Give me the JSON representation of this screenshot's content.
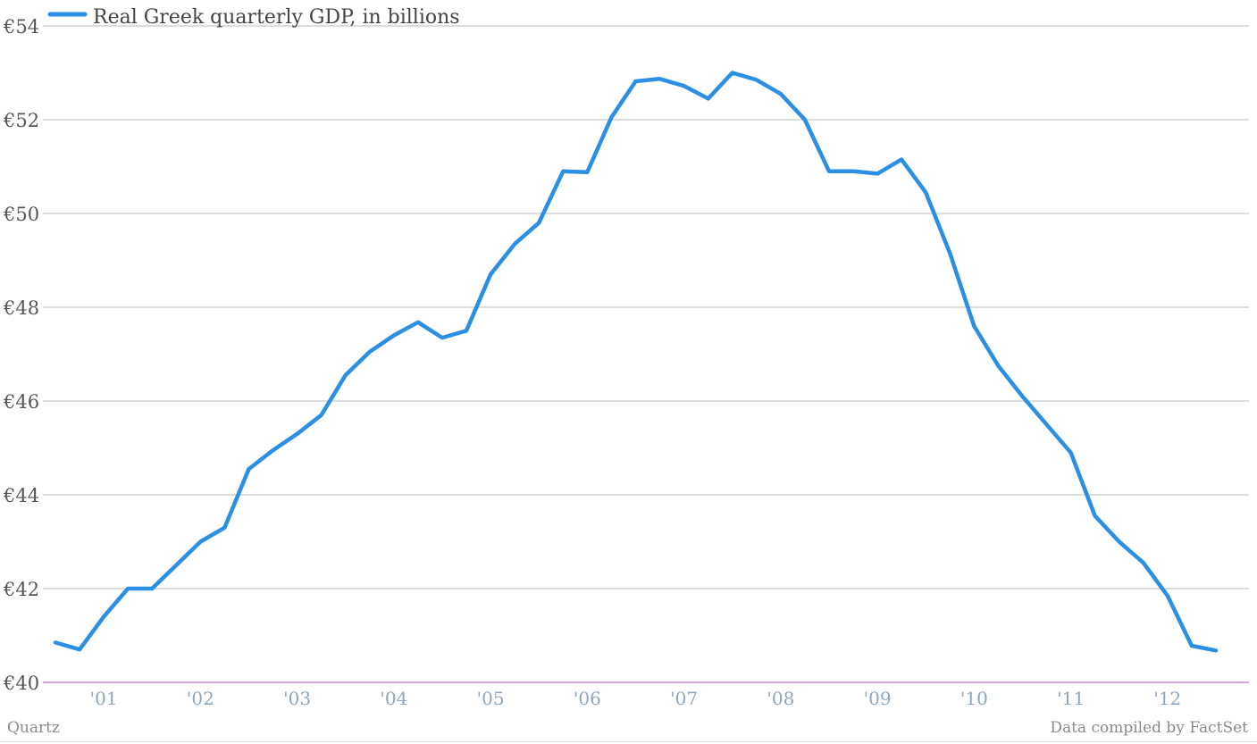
{
  "chart_data": {
    "type": "line",
    "legend": {
      "label": "Real Greek quarterly GDP, in billions",
      "placement": "top-left"
    },
    "x_start_year": 2000.5,
    "x_step": 0.25,
    "xlim": [
      2000.5,
      2012.75
    ],
    "x_ticks": [
      {
        "label": "'01",
        "year": 2001
      },
      {
        "label": "'02",
        "year": 2002
      },
      {
        "label": "'03",
        "year": 2003
      },
      {
        "label": "'04",
        "year": 2004
      },
      {
        "label": "'05",
        "year": 2005
      },
      {
        "label": "'06",
        "year": 2006
      },
      {
        "label": "'07",
        "year": 2007
      },
      {
        "label": "'08",
        "year": 2008
      },
      {
        "label": "'09",
        "year": 2009
      },
      {
        "label": "'10",
        "year": 2010
      },
      {
        "label": "'11",
        "year": 2011
      },
      {
        "label": "'12",
        "year": 2012
      }
    ],
    "ylim": [
      40,
      54
    ],
    "y_ticks": [
      {
        "label": "€40",
        "value": 40
      },
      {
        "label": "€42",
        "value": 42
      },
      {
        "label": "€44",
        "value": 44
      },
      {
        "label": "€46",
        "value": 46
      },
      {
        "label": "€48",
        "value": 48
      },
      {
        "label": "€50",
        "value": 50
      },
      {
        "label": "€52",
        "value": 52
      },
      {
        "label": "€54",
        "value": 54
      }
    ],
    "grid": "horizontal",
    "series": [
      {
        "name": "Real Greek quarterly GDP, in billions",
        "color": "#2b8fe3",
        "values": [
          40.85,
          40.7,
          41.4,
          42.0,
          42.0,
          42.5,
          43.0,
          43.3,
          44.55,
          44.95,
          45.3,
          45.7,
          46.55,
          47.05,
          47.4,
          47.68,
          47.35,
          47.5,
          48.7,
          49.35,
          49.8,
          50.9,
          50.88,
          52.05,
          52.82,
          52.87,
          52.72,
          52.45,
          53.0,
          52.85,
          52.55,
          52.0,
          50.9,
          50.9,
          50.85,
          51.15,
          50.45,
          49.15,
          47.6,
          46.75,
          46.1,
          45.5,
          44.9,
          43.55,
          43.0,
          42.55,
          41.85,
          40.78,
          40.68
        ]
      }
    ]
  },
  "footer": {
    "source_left": "Quartz",
    "source_right": "Data compiled by FactSet"
  },
  "colors": {
    "grid": "#b8b8b8",
    "baseline": "#c86ad0",
    "y_tick_text": "#555555",
    "x_tick_text": "#8fa6bd",
    "footer_text": "#8a8a8a"
  }
}
